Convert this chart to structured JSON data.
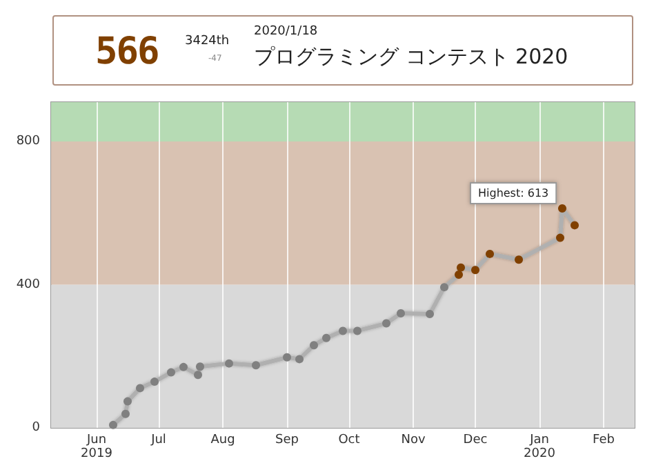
{
  "chart_data": {
    "type": "line",
    "title": "プログラミング コンテスト 2020",
    "subtitle": "2020/1/18",
    "annotations": [
      "566",
      "3424th",
      "-47",
      {
        "text": "Highest: 613",
        "x": "2020-01-12",
        "y": 613
      }
    ],
    "x": [
      "2019-06-09",
      "2019-06-15",
      "2019-06-16",
      "2019-06-22",
      "2019-06-29",
      "2019-07-07",
      "2019-07-13",
      "2019-07-20",
      "2019-07-21",
      "2019-08-04",
      "2019-08-17",
      "2019-09-01",
      "2019-09-07",
      "2019-09-14",
      "2019-09-20",
      "2019-09-28",
      "2019-10-05",
      "2019-10-19",
      "2019-10-26",
      "2019-11-09",
      "2019-11-16",
      "2019-11-23",
      "2019-11-24",
      "2019-12-01",
      "2019-12-08",
      "2019-12-22",
      "2020-01-11",
      "2020-01-12",
      "2020-01-18"
    ],
    "series": [
      {
        "color": "#b0b0b0",
        "values": [
          8,
          39,
          74,
          111,
          129,
          155,
          170,
          148,
          171,
          180,
          175,
          197,
          192,
          231,
          251,
          271,
          271,
          292,
          320,
          318,
          393,
          428,
          448,
          441,
          486,
          470,
          531,
          613,
          566
        ],
        "colors": [
          "#808080",
          "#808080",
          "#808080",
          "#808080",
          "#808080",
          "#808080",
          "#808080",
          "#808080",
          "#808080",
          "#808080",
          "#808080",
          "#808080",
          "#808080",
          "#808080",
          "#808080",
          "#808080",
          "#808080",
          "#808080",
          "#808080",
          "#808080",
          "#808080",
          "#804000",
          "#804000",
          "#804000",
          "#804000",
          "#804000",
          "#804000",
          "#804000",
          "#804000"
        ]
      }
    ],
    "xlim": [
      "2019-05-10",
      "2020-02-16"
    ],
    "xticks": [
      {
        "value": "2019-06-01",
        "label": "Jun\n2019"
      },
      {
        "value": "2019-07-01",
        "label": "Jul"
      },
      {
        "value": "2019-08-01",
        "label": "Aug"
      },
      {
        "value": "2019-09-01",
        "label": "Sep"
      },
      {
        "value": "2019-10-01",
        "label": "Oct"
      },
      {
        "value": "2019-11-01",
        "label": "Nov"
      },
      {
        "value": "2019-12-01",
        "label": "Dec"
      },
      {
        "value": "2020-01-01",
        "label": "Jan\n2020"
      },
      {
        "value": "2020-02-01",
        "label": "Feb"
      }
    ],
    "ylim": [
      0,
      910
    ],
    "yticks": [
      0,
      400,
      800
    ],
    "bands": [
      {
        "axis": "y",
        "from": 0,
        "to": 400,
        "color": "#d9d9d9"
      },
      {
        "axis": "y",
        "from": 400,
        "to": 800,
        "color": "#d9c2b2"
      },
      {
        "axis": "y",
        "from": 800,
        "to": 910,
        "color": "#b6dbb4"
      }
    ],
    "grid": "x",
    "marker": "circle",
    "line_style": "solid"
  }
}
